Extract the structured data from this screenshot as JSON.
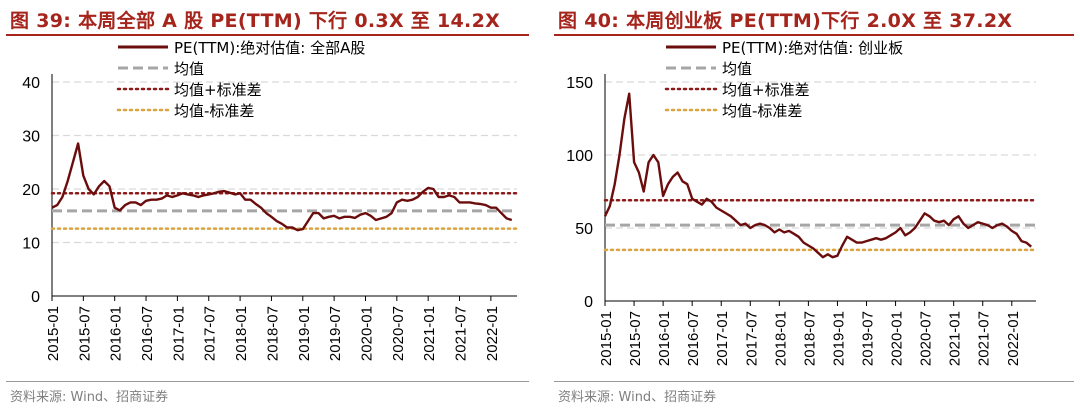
{
  "chart_data": [
    {
      "type": "line",
      "title": "图 39: 本周全部 A 股 PE(TTM) 下行 0.3X 至 14.2X",
      "source": "资料来源: Wind、招商证券",
      "ylim": [
        0,
        40
      ],
      "yticks": [
        0,
        10,
        20,
        30,
        40
      ],
      "xlim": [
        "2015-01",
        "2022-06"
      ],
      "xticks": [
        "2015-01",
        "2015-07",
        "2016-01",
        "2016-07",
        "2017-01",
        "2017-07",
        "2018-01",
        "2018-07",
        "2019-01",
        "2019-07",
        "2020-01",
        "2020-07",
        "2021-01",
        "2021-07",
        "2022-01"
      ],
      "grid": true,
      "legend_position": "top-center",
      "series": [
        {
          "name": "PE(TTM):绝对估值: 全部A股",
          "style": "solid",
          "color": "#6b0d0d",
          "points": [
            [
              "2015-01",
              16.5
            ],
            [
              "2015-02",
              17.0
            ],
            [
              "2015-03",
              18.5
            ],
            [
              "2015-04",
              21.5
            ],
            [
              "2015-05",
              25.0
            ],
            [
              "2015-06",
              28.5
            ],
            [
              "2015-07",
              22.5
            ],
            [
              "2015-08",
              20.0
            ],
            [
              "2015-09",
              19.0
            ],
            [
              "2015-10",
              20.5
            ],
            [
              "2015-11",
              21.5
            ],
            [
              "2015-12",
              20.5
            ],
            [
              "2016-01",
              16.5
            ],
            [
              "2016-02",
              16.0
            ],
            [
              "2016-03",
              17.0
            ],
            [
              "2016-04",
              17.5
            ],
            [
              "2016-05",
              17.5
            ],
            [
              "2016-06",
              17.0
            ],
            [
              "2016-07",
              17.8
            ],
            [
              "2016-08",
              18.0
            ],
            [
              "2016-09",
              18.0
            ],
            [
              "2016-10",
              18.2
            ],
            [
              "2016-11",
              18.8
            ],
            [
              "2016-12",
              18.5
            ],
            [
              "2017-01",
              18.8
            ],
            [
              "2017-02",
              19.2
            ],
            [
              "2017-03",
              19.0
            ],
            [
              "2017-04",
              18.8
            ],
            [
              "2017-05",
              18.5
            ],
            [
              "2017-06",
              18.8
            ],
            [
              "2017-07",
              19.0
            ],
            [
              "2017-08",
              19.2
            ],
            [
              "2017-09",
              19.5
            ],
            [
              "2017-10",
              19.6
            ],
            [
              "2017-11",
              19.3
            ],
            [
              "2017-12",
              19.0
            ],
            [
              "2018-01",
              19.2
            ],
            [
              "2018-02",
              18.0
            ],
            [
              "2018-03",
              18.0
            ],
            [
              "2018-04",
              17.2
            ],
            [
              "2018-05",
              16.5
            ],
            [
              "2018-06",
              15.5
            ],
            [
              "2018-07",
              14.8
            ],
            [
              "2018-08",
              14.0
            ],
            [
              "2018-09",
              13.5
            ],
            [
              "2018-10",
              12.8
            ],
            [
              "2018-11",
              12.8
            ],
            [
              "2018-12",
              12.3
            ],
            [
              "2019-01",
              12.5
            ],
            [
              "2019-02",
              14.0
            ],
            [
              "2019-03",
              15.5
            ],
            [
              "2019-04",
              15.5
            ],
            [
              "2019-05",
              14.5
            ],
            [
              "2019-06",
              14.8
            ],
            [
              "2019-07",
              15.0
            ],
            [
              "2019-08",
              14.5
            ],
            [
              "2019-09",
              14.8
            ],
            [
              "2019-10",
              14.8
            ],
            [
              "2019-11",
              14.6
            ],
            [
              "2019-12",
              15.2
            ],
            [
              "2020-01",
              15.5
            ],
            [
              "2020-02",
              15.0
            ],
            [
              "2020-03",
              14.2
            ],
            [
              "2020-04",
              14.5
            ],
            [
              "2020-05",
              14.8
            ],
            [
              "2020-06",
              15.5
            ],
            [
              "2020-07",
              17.5
            ],
            [
              "2020-08",
              18.0
            ],
            [
              "2020-09",
              17.8
            ],
            [
              "2020-10",
              18.0
            ],
            [
              "2020-11",
              18.5
            ],
            [
              "2020-12",
              19.5
            ],
            [
              "2021-01",
              20.2
            ],
            [
              "2021-02",
              20.0
            ],
            [
              "2021-03",
              18.5
            ],
            [
              "2021-04",
              18.5
            ],
            [
              "2021-05",
              18.8
            ],
            [
              "2021-06",
              18.5
            ],
            [
              "2021-07",
              17.5
            ],
            [
              "2021-08",
              17.5
            ],
            [
              "2021-09",
              17.5
            ],
            [
              "2021-10",
              17.3
            ],
            [
              "2021-11",
              17.2
            ],
            [
              "2021-12",
              17.0
            ],
            [
              "2022-01",
              16.5
            ],
            [
              "2022-02",
              16.5
            ],
            [
              "2022-03",
              15.5
            ],
            [
              "2022-04",
              14.5
            ],
            [
              "2022-05",
              14.2
            ]
          ]
        },
        {
          "name": "均值",
          "style": "dashed",
          "color": "#a6a6a6",
          "value": 15.9
        },
        {
          "name": "均值+标准差",
          "style": "dotted",
          "color": "#8b1a1a",
          "value": 19.2
        },
        {
          "name": "均值-标准差",
          "style": "dotted",
          "color": "#d9a441",
          "value": 12.6
        }
      ]
    },
    {
      "type": "line",
      "title": "图 40: 本周创业板 PE(TTM)下行 2.0X 至 37.2X",
      "source": "资料来源: Wind、招商证券",
      "ylim": [
        0,
        150
      ],
      "yticks": [
        0,
        50,
        100,
        150
      ],
      "xlim": [
        "2015-01",
        "2022-06"
      ],
      "xticks": [
        "2015-01",
        "2015-07",
        "2016-01",
        "2016-07",
        "2017-01",
        "2017-07",
        "2018-01",
        "2018-07",
        "2019-01",
        "2019-07",
        "2020-01",
        "2020-07",
        "2021-01",
        "2021-07",
        "2022-01"
      ],
      "grid": true,
      "legend_position": "top-center",
      "series": [
        {
          "name": "PE(TTM):绝对估值: 创业板",
          "style": "solid",
          "color": "#6b0d0d",
          "points": [
            [
              "2015-01",
              58
            ],
            [
              "2015-02",
              65
            ],
            [
              "2015-03",
              80
            ],
            [
              "2015-04",
              100
            ],
            [
              "2015-05",
              125
            ],
            [
              "2015-06",
              142
            ],
            [
              "2015-07",
              95
            ],
            [
              "2015-08",
              88
            ],
            [
              "2015-09",
              75
            ],
            [
              "2015-10",
              95
            ],
            [
              "2015-11",
              100
            ],
            [
              "2015-12",
              95
            ],
            [
              "2016-01",
              72
            ],
            [
              "2016-02",
              80
            ],
            [
              "2016-03",
              85
            ],
            [
              "2016-04",
              88
            ],
            [
              "2016-05",
              82
            ],
            [
              "2016-06",
              80
            ],
            [
              "2016-07",
              70
            ],
            [
              "2016-08",
              68
            ],
            [
              "2016-09",
              66
            ],
            [
              "2016-10",
              70
            ],
            [
              "2016-11",
              68
            ],
            [
              "2016-12",
              64
            ],
            [
              "2017-01",
              62
            ],
            [
              "2017-02",
              60
            ],
            [
              "2017-03",
              58
            ],
            [
              "2017-04",
              55
            ],
            [
              "2017-05",
              52
            ],
            [
              "2017-06",
              53
            ],
            [
              "2017-07",
              50
            ],
            [
              "2017-08",
              52
            ],
            [
              "2017-09",
              53
            ],
            [
              "2017-10",
              52
            ],
            [
              "2017-11",
              50
            ],
            [
              "2017-12",
              47
            ],
            [
              "2018-01",
              49
            ],
            [
              "2018-02",
              47
            ],
            [
              "2018-03",
              48
            ],
            [
              "2018-04",
              46
            ],
            [
              "2018-05",
              44
            ],
            [
              "2018-06",
              40
            ],
            [
              "2018-07",
              38
            ],
            [
              "2018-08",
              36
            ],
            [
              "2018-09",
              33
            ],
            [
              "2018-10",
              30
            ],
            [
              "2018-11",
              32
            ],
            [
              "2018-12",
              30
            ],
            [
              "2019-01",
              31
            ],
            [
              "2019-02",
              38
            ],
            [
              "2019-03",
              44
            ],
            [
              "2019-04",
              42
            ],
            [
              "2019-05",
              40
            ],
            [
              "2019-06",
              40
            ],
            [
              "2019-07",
              41
            ],
            [
              "2019-08",
              42
            ],
            [
              "2019-09",
              43
            ],
            [
              "2019-10",
              42
            ],
            [
              "2019-11",
              43
            ],
            [
              "2019-12",
              45
            ],
            [
              "2020-01",
              47
            ],
            [
              "2020-02",
              50
            ],
            [
              "2020-03",
              45
            ],
            [
              "2020-04",
              47
            ],
            [
              "2020-05",
              50
            ],
            [
              "2020-06",
              55
            ],
            [
              "2020-07",
              60
            ],
            [
              "2020-08",
              58
            ],
            [
              "2020-09",
              55
            ],
            [
              "2020-10",
              54
            ],
            [
              "2020-11",
              55
            ],
            [
              "2020-12",
              52
            ],
            [
              "2021-01",
              56
            ],
            [
              "2021-02",
              58
            ],
            [
              "2021-03",
              53
            ],
            [
              "2021-04",
              50
            ],
            [
              "2021-05",
              52
            ],
            [
              "2021-06",
              54
            ],
            [
              "2021-07",
              53
            ],
            [
              "2021-08",
              52
            ],
            [
              "2021-09",
              50
            ],
            [
              "2021-10",
              52
            ],
            [
              "2021-11",
              53
            ],
            [
              "2021-12",
              51
            ],
            [
              "2022-01",
              48
            ],
            [
              "2022-02",
              46
            ],
            [
              "2022-03",
              41
            ],
            [
              "2022-04",
              40
            ],
            [
              "2022-05",
              37.2
            ]
          ]
        },
        {
          "name": "均值",
          "style": "dashed",
          "color": "#a6a6a6",
          "value": 52
        },
        {
          "name": "均值+标准差",
          "style": "dotted",
          "color": "#8b1a1a",
          "value": 69
        },
        {
          "name": "均值-标准差",
          "style": "dotted",
          "color": "#d9a441",
          "value": 35
        }
      ]
    }
  ]
}
